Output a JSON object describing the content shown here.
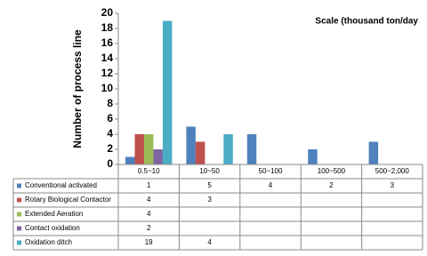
{
  "chart_data": {
    "type": "bar",
    "title": "Scale (thousand ton/day",
    "y_label": "Number of process line",
    "categories": [
      "0.5~10",
      "10~50",
      "50~100",
      "100~500",
      "500~2,000"
    ],
    "series": [
      {
        "name": "Conventional activated",
        "color": "#4f81bd",
        "values": [
          1,
          5,
          4,
          2,
          3
        ]
      },
      {
        "name": "Rotary Biological Contactor",
        "color": "#c0504d",
        "values": [
          4,
          3,
          null,
          null,
          null
        ]
      },
      {
        "name": "Extended Aeration",
        "color": "#9bbb59",
        "values": [
          4,
          null,
          null,
          null,
          null
        ]
      },
      {
        "name": "Contact oxidation",
        "color": "#8064a2",
        "values": [
          2,
          null,
          null,
          null,
          null
        ]
      },
      {
        "name": "Oxidation ditch",
        "color": "#4bacc6",
        "values": [
          19,
          4,
          null,
          null,
          null
        ]
      }
    ],
    "ylim": [
      0,
      20
    ],
    "yticks": [
      0,
      2,
      4,
      6,
      8,
      10,
      12,
      14,
      16,
      18,
      20
    ],
    "grid": false,
    "data_table": true
  }
}
